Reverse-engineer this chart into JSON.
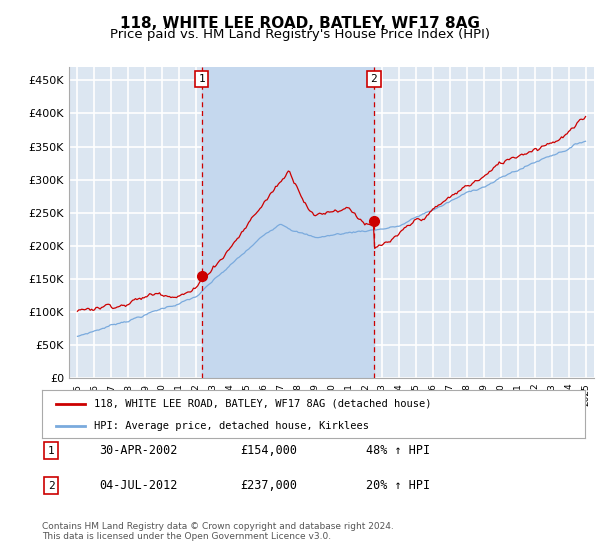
{
  "title": "118, WHITE LEE ROAD, BATLEY, WF17 8AG",
  "subtitle": "Price paid vs. HM Land Registry's House Price Index (HPI)",
  "ylabel_ticks": [
    "£0",
    "£50K",
    "£100K",
    "£150K",
    "£200K",
    "£250K",
    "£300K",
    "£350K",
    "£400K",
    "£450K"
  ],
  "ytick_values": [
    0,
    50000,
    100000,
    150000,
    200000,
    250000,
    300000,
    350000,
    400000,
    450000
  ],
  "ylim": [
    0,
    470000
  ],
  "xlim_start": 1994.5,
  "xlim_end": 2025.5,
  "plot_bg_color": "#dce6f1",
  "highlight_color": "#c5d8ee",
  "grid_color": "#ffffff",
  "red_line_color": "#cc0000",
  "blue_line_color": "#7aaadd",
  "sale1_x": 2002.33,
  "sale1_y": 154000,
  "sale2_x": 2012.5,
  "sale2_y": 237000,
  "legend_label1": "118, WHITE LEE ROAD, BATLEY, WF17 8AG (detached house)",
  "legend_label2": "HPI: Average price, detached house, Kirklees",
  "table_row1_num": "1",
  "table_row1_date": "30-APR-2002",
  "table_row1_price": "£154,000",
  "table_row1_hpi": "48% ↑ HPI",
  "table_row2_num": "2",
  "table_row2_date": "04-JUL-2012",
  "table_row2_price": "£237,000",
  "table_row2_hpi": "20% ↑ HPI",
  "footer": "Contains HM Land Registry data © Crown copyright and database right 2024.\nThis data is licensed under the Open Government Licence v3.0.",
  "title_fontsize": 11,
  "subtitle_fontsize": 9.5
}
